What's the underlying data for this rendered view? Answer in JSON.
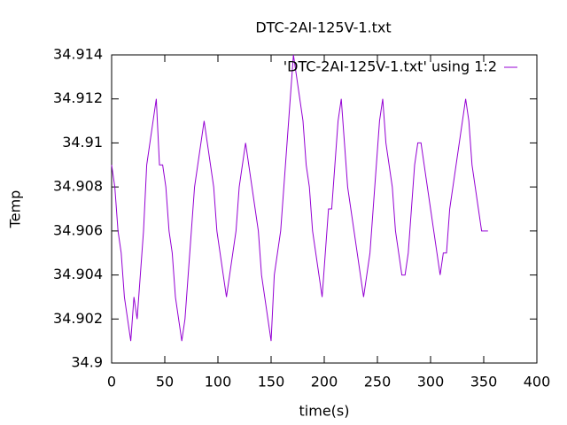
{
  "chart_data": {
    "type": "line",
    "title": "DTC-2AI-125V-1.txt",
    "xlabel": "time(s)",
    "ylabel": "Temp",
    "x": [
      0,
      3,
      6,
      9,
      12,
      15,
      18,
      21,
      24,
      27,
      30,
      33,
      36,
      39,
      42,
      45,
      48,
      51,
      54,
      57,
      60,
      63,
      66,
      69,
      72,
      75,
      78,
      81,
      84,
      87,
      90,
      93,
      96,
      99,
      102,
      105,
      108,
      111,
      114,
      117,
      120,
      123,
      126,
      129,
      132,
      135,
      138,
      141,
      144,
      147,
      150,
      153,
      156,
      159,
      162,
      165,
      168,
      171,
      174,
      177,
      180,
      183,
      186,
      189,
      192,
      195,
      198,
      201,
      204,
      207,
      210,
      213,
      216,
      219,
      222,
      225,
      228,
      231,
      234,
      237,
      240,
      243,
      246,
      249,
      252,
      255,
      258,
      261,
      264,
      267,
      270,
      273,
      276,
      279,
      282,
      285,
      288,
      291,
      294,
      297,
      300,
      303,
      306,
      309,
      312,
      315,
      318,
      321,
      324,
      327,
      330,
      333,
      336,
      339,
      342,
      345,
      348,
      351,
      354
    ],
    "series": [
      {
        "name": "'DTC-2AI-125V-1.txt' using 1:2",
        "color": "#9400d3",
        "values": [
          34.909,
          34.908,
          34.906,
          34.905,
          34.903,
          34.902,
          34.901,
          34.903,
          34.902,
          34.904,
          34.906,
          34.909,
          34.91,
          34.911,
          34.912,
          34.909,
          34.909,
          34.908,
          34.906,
          34.905,
          34.903,
          34.902,
          34.901,
          34.902,
          34.904,
          34.906,
          34.908,
          34.909,
          34.91,
          34.911,
          34.91,
          34.909,
          34.908,
          34.906,
          34.905,
          34.904,
          34.903,
          34.904,
          34.905,
          34.906,
          34.908,
          34.909,
          34.91,
          34.909,
          34.908,
          34.907,
          34.906,
          34.904,
          34.903,
          34.902,
          34.901,
          34.904,
          34.905,
          34.906,
          34.908,
          34.91,
          34.912,
          34.914,
          34.913,
          34.912,
          34.911,
          34.909,
          34.908,
          34.906,
          34.905,
          34.904,
          34.903,
          34.905,
          34.907,
          34.907,
          34.909,
          34.911,
          34.912,
          34.91,
          34.908,
          34.907,
          34.906,
          34.905,
          34.904,
          34.903,
          34.904,
          34.905,
          34.907,
          34.909,
          34.911,
          34.912,
          34.91,
          34.909,
          34.908,
          34.906,
          34.905,
          34.904,
          34.904,
          34.905,
          34.907,
          34.909,
          34.91,
          34.91,
          34.909,
          34.908,
          34.907,
          34.906,
          34.905,
          34.904,
          34.905,
          34.905,
          34.907,
          34.908,
          34.909,
          34.91,
          34.911,
          34.912,
          34.911,
          34.909,
          34.908,
          34.907,
          34.906,
          34.906,
          34.906
        ]
      }
    ],
    "xlim": [
      0,
      400
    ],
    "xticks": [
      0,
      50,
      100,
      150,
      200,
      250,
      300,
      350,
      400
    ],
    "ylim": [
      34.9,
      34.914
    ],
    "yticks": [
      34.9,
      34.902,
      34.904,
      34.906,
      34.908,
      34.91,
      34.912,
      34.914
    ],
    "grid": false,
    "legend": "top-right"
  }
}
